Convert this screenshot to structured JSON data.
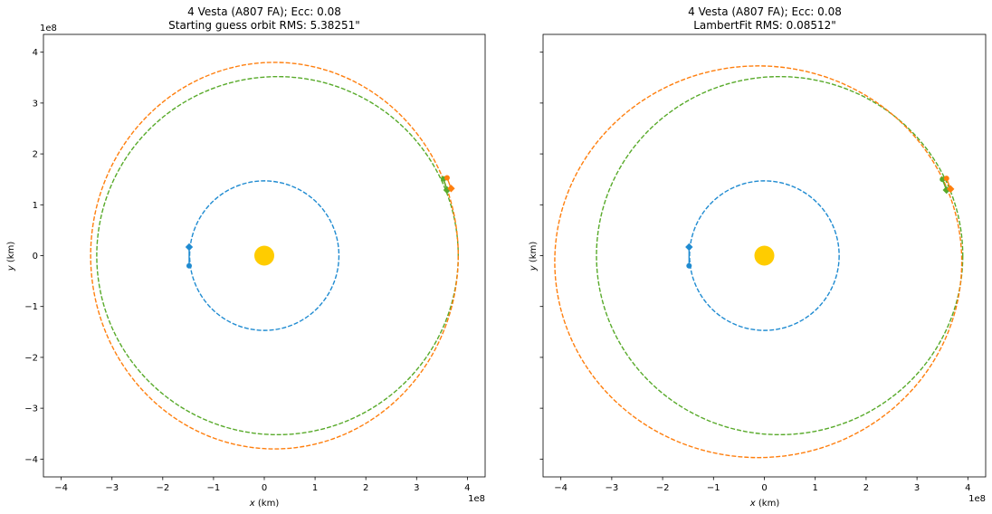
{
  "chart_data": [
    {
      "type": "scatter",
      "title_line1": "4 Vesta (A807 FA); Ecc: 0.08",
      "title_line2": "Starting guess orbit RMS: 5.38251\"",
      "xlabel_var": "x",
      "xlabel_unit": " (km)",
      "ylabel_var": "y",
      "ylabel_unit": " (km)",
      "offset_label": "1e8",
      "xlim": [
        -4.35,
        4.35
      ],
      "ylim": [
        -4.35,
        4.35
      ],
      "xticks": [
        -4,
        -3,
        -2,
        -1,
        0,
        1,
        2,
        3,
        4
      ],
      "yticks": [
        -4,
        -3,
        -2,
        -1,
        0,
        1,
        2,
        3,
        4
      ],
      "xticklabels": [
        "−4",
        "−3",
        "−2",
        "−1",
        "0",
        "1",
        "2",
        "3",
        "4"
      ],
      "yticklabels": [
        "−4",
        "−3",
        "−2",
        "−1",
        "0",
        "1",
        "2",
        "3",
        "4"
      ],
      "show_yticklabels": true,
      "sun": {
        "x": 0,
        "y": 0,
        "color": "#ffcc00"
      },
      "orbits": [
        {
          "cx": 0,
          "cy": 0,
          "rx": 1.47,
          "ry": 1.47,
          "color": "#1f8bd1"
        },
        {
          "cx": 0.26,
          "cy": 0.0,
          "rx": 3.56,
          "ry": 3.52,
          "color": "#58aa2a"
        },
        {
          "cx": 0.2,
          "cy": 0.0,
          "rx": 3.62,
          "ry": 3.8,
          "color": "#ff7f0e"
        }
      ],
      "markers": [
        {
          "x": -1.48,
          "y": 0.17,
          "shape": "diamond",
          "color": "#1f8bd1"
        },
        {
          "x": -1.48,
          "y": -0.2,
          "shape": "circle",
          "color": "#1f8bd1"
        },
        {
          "x": 3.53,
          "y": 1.51,
          "shape": "circle",
          "color": "#58aa2a"
        },
        {
          "x": 3.6,
          "y": 1.29,
          "shape": "diamond",
          "color": "#58aa2a"
        },
        {
          "x": 3.6,
          "y": 1.53,
          "shape": "circle",
          "color": "#ff7f0e"
        },
        {
          "x": 3.68,
          "y": 1.32,
          "shape": "diamond",
          "color": "#ff7f0e"
        }
      ],
      "connectors": [
        {
          "x1": -1.48,
          "y1": 0.17,
          "x2": -1.48,
          "y2": -0.2,
          "color": "#1f8bd1"
        },
        {
          "x1": 3.53,
          "y1": 1.51,
          "x2": 3.6,
          "y2": 1.29,
          "color": "#58aa2a"
        },
        {
          "x1": 3.6,
          "y1": 1.53,
          "x2": 3.68,
          "y2": 1.32,
          "color": "#ff7f0e"
        }
      ]
    },
    {
      "type": "scatter",
      "title_line1": "4 Vesta (A807 FA); Ecc: 0.08",
      "title_line2": "LambertFit RMS: 0.08512\"",
      "xlabel_var": "x",
      "xlabel_unit": " (km)",
      "ylabel_var": "y",
      "ylabel_unit": " (km)",
      "offset_label": "1e8",
      "xlim": [
        -4.35,
        4.35
      ],
      "ylim": [
        -4.35,
        4.35
      ],
      "xticks": [
        -4,
        -3,
        -2,
        -1,
        0,
        1,
        2,
        3,
        4
      ],
      "yticks": [
        -4,
        -3,
        -2,
        -1,
        0,
        1,
        2,
        3,
        4
      ],
      "xticklabels": [
        "−4",
        "−3",
        "−2",
        "−1",
        "0",
        "1",
        "2",
        "3",
        "4"
      ],
      "yticklabels": [
        "−4",
        "−3",
        "−2",
        "−1",
        "0",
        "1",
        "2",
        "3",
        "4"
      ],
      "show_yticklabels": false,
      "sun": {
        "x": 0,
        "y": 0,
        "color": "#ffcc00"
      },
      "orbits": [
        {
          "cx": 0,
          "cy": 0,
          "rx": 1.47,
          "ry": 1.47,
          "color": "#1f8bd1"
        },
        {
          "cx": 0.3,
          "cy": 0.0,
          "rx": 3.6,
          "ry": 3.52,
          "color": "#58aa2a"
        },
        {
          "cx": -0.12,
          "cy": -0.12,
          "rx": 4.0,
          "ry": 3.85,
          "color": "#ff7f0e"
        }
      ],
      "markers": [
        {
          "x": -1.48,
          "y": 0.17,
          "shape": "diamond",
          "color": "#1f8bd1"
        },
        {
          "x": -1.48,
          "y": -0.2,
          "shape": "circle",
          "color": "#1f8bd1"
        },
        {
          "x": 3.5,
          "y": 1.5,
          "shape": "circle",
          "color": "#58aa2a"
        },
        {
          "x": 3.58,
          "y": 1.29,
          "shape": "diamond",
          "color": "#58aa2a"
        },
        {
          "x": 3.58,
          "y": 1.52,
          "shape": "circle",
          "color": "#ff7f0e"
        },
        {
          "x": 3.66,
          "y": 1.31,
          "shape": "diamond",
          "color": "#ff7f0e"
        }
      ],
      "connectors": [
        {
          "x1": -1.48,
          "y1": 0.17,
          "x2": -1.48,
          "y2": -0.2,
          "color": "#1f8bd1"
        },
        {
          "x1": 3.5,
          "y1": 1.5,
          "x2": 3.58,
          "y2": 1.29,
          "color": "#58aa2a"
        },
        {
          "x1": 3.58,
          "y1": 1.52,
          "x2": 3.66,
          "y2": 1.31,
          "color": "#ff7f0e"
        }
      ]
    }
  ]
}
